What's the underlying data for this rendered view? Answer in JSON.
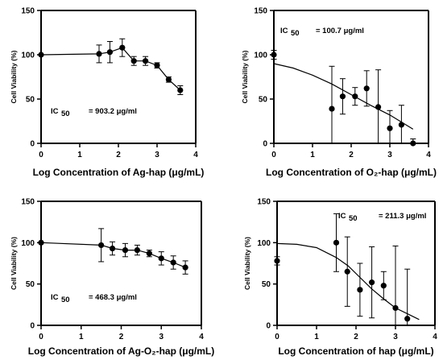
{
  "chart_data": [
    {
      "type": "scatter",
      "xlabel": "Log Concentration of Ag-hap (μg/mL)",
      "ylabel": "Cell Viability (%)",
      "xlim": [
        0,
        4
      ],
      "ylim": [
        0,
        150
      ],
      "xticks": [
        0,
        1,
        2,
        3,
        4
      ],
      "yticks": [
        0,
        50,
        100,
        150
      ],
      "ic50_label": "IC",
      "ic50_sub": "50",
      "ic50_value": "= 903.2 μg/ml",
      "connect": true,
      "points": [
        {
          "x": 0,
          "y": 100,
          "err": 0
        },
        {
          "x": 1.5,
          "y": 101,
          "err": 10
        },
        {
          "x": 1.78,
          "y": 103,
          "err": 12
        },
        {
          "x": 2.1,
          "y": 108,
          "err": 10
        },
        {
          "x": 2.4,
          "y": 93,
          "err": 5
        },
        {
          "x": 2.7,
          "y": 93,
          "err": 5
        },
        {
          "x": 3.0,
          "y": 88,
          "err": 3
        },
        {
          "x": 3.3,
          "y": 72,
          "err": 3
        },
        {
          "x": 3.6,
          "y": 60,
          "err": 5
        }
      ]
    },
    {
      "type": "scatter",
      "xlabel": "Log Concentration of O₂-hap (μg/mL)",
      "ylabel": "Cell Viability (%)",
      "xlim": [
        0,
        4
      ],
      "ylim": [
        0,
        150
      ],
      "xticks": [
        0,
        1,
        2,
        3,
        4
      ],
      "yticks": [
        0,
        50,
        100,
        150
      ],
      "ic50_label": "IC",
      "ic50_sub": "50",
      "ic50_value": "= 100.7 μg/ml",
      "connect": false,
      "fit": [
        [
          0,
          90
        ],
        [
          0.5,
          85
        ],
        [
          1.0,
          77
        ],
        [
          1.5,
          67
        ],
        [
          2.0,
          55
        ],
        [
          2.5,
          43
        ],
        [
          3.0,
          32
        ],
        [
          3.6,
          16
        ]
      ],
      "points": [
        {
          "x": 0,
          "y": 100,
          "err": 5
        },
        {
          "x": 1.5,
          "y": 39,
          "err": 48
        },
        {
          "x": 1.78,
          "y": 53,
          "err": 20
        },
        {
          "x": 2.1,
          "y": 53,
          "err": 10
        },
        {
          "x": 2.4,
          "y": 62,
          "err": 20
        },
        {
          "x": 2.7,
          "y": 41,
          "err": 42
        },
        {
          "x": 3.0,
          "y": 17,
          "err": 20
        },
        {
          "x": 3.3,
          "y": 21,
          "err": 22
        },
        {
          "x": 3.6,
          "y": 0,
          "err": 5
        }
      ]
    },
    {
      "type": "scatter",
      "xlabel": "Log Concentration of Ag-O₂-hap (μg/mL)",
      "ylabel": "Cell Viability (%)",
      "xlim": [
        0,
        4
      ],
      "ylim": [
        0,
        150
      ],
      "xticks": [
        0,
        1,
        2,
        3,
        4
      ],
      "yticks": [
        0,
        50,
        100,
        150
      ],
      "ic50_label": "IC",
      "ic50_sub": "50",
      "ic50_value": "= 468.3 μg/ml",
      "connect": true,
      "points": [
        {
          "x": 0,
          "y": 100,
          "err": 0
        },
        {
          "x": 1.5,
          "y": 97,
          "err": 20
        },
        {
          "x": 1.78,
          "y": 93,
          "err": 8
        },
        {
          "x": 2.1,
          "y": 91,
          "err": 8
        },
        {
          "x": 2.4,
          "y": 91,
          "err": 6
        },
        {
          "x": 2.7,
          "y": 87,
          "err": 4
        },
        {
          "x": 3.0,
          "y": 81,
          "err": 8
        },
        {
          "x": 3.3,
          "y": 76,
          "err": 8
        },
        {
          "x": 3.6,
          "y": 70,
          "err": 8
        }
      ]
    },
    {
      "type": "scatter",
      "xlabel": "Log Concentration of hap (μg/mL)",
      "ylabel": "Cell Viability (%)",
      "xlim": [
        0,
        4
      ],
      "ylim": [
        0,
        150
      ],
      "xticks": [
        0,
        1,
        2,
        3,
        4
      ],
      "yticks": [
        0,
        50,
        100,
        150
      ],
      "ic50_label": "IC",
      "ic50_sub": "50",
      "ic50_value": "= 211.3 μg/ml",
      "connect": false,
      "fit": [
        [
          0,
          99
        ],
        [
          0.5,
          98
        ],
        [
          1.0,
          94
        ],
        [
          1.5,
          82
        ],
        [
          1.8,
          72
        ],
        [
          2.1,
          58
        ],
        [
          2.4,
          44
        ],
        [
          2.7,
          32
        ],
        [
          3.0,
          21
        ],
        [
          3.6,
          7
        ]
      ],
      "points": [
        {
          "x": 0,
          "y": 78,
          "err": 5
        },
        {
          "x": 1.5,
          "y": 100,
          "err": 35
        },
        {
          "x": 1.78,
          "y": 65,
          "err": 42
        },
        {
          "x": 2.1,
          "y": 43,
          "err": 32
        },
        {
          "x": 2.4,
          "y": 52,
          "err": 43
        },
        {
          "x": 2.7,
          "y": 48,
          "err": 17
        },
        {
          "x": 3.0,
          "y": 21,
          "err": 75
        },
        {
          "x": 3.3,
          "y": 8,
          "err": 60
        }
      ]
    }
  ]
}
